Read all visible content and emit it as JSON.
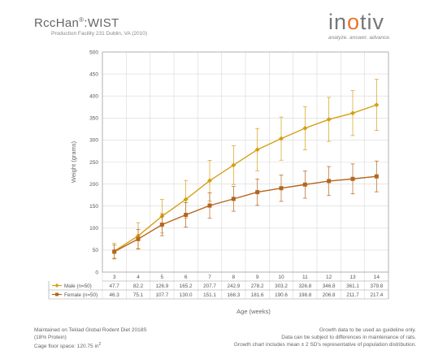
{
  "header": {
    "title_main": "RccHan",
    "title_reg": "®",
    "title_suffix": ":WIST",
    "subtitle": "Production Facility 231 Dublin, VA (2010)"
  },
  "logo": {
    "name_pre": "in",
    "name_o": "o",
    "name_post": "tiv",
    "tagline": "analyze. answer. advance."
  },
  "chart_data": {
    "type": "line",
    "ylabel": "Weight (grams)",
    "xlabel": "Age (weeks)",
    "ylim": [
      0,
      500
    ],
    "yticks": [
      0,
      50,
      100,
      150,
      200,
      250,
      300,
      350,
      400,
      450,
      500
    ],
    "grid": true,
    "categories": [
      "3",
      "4",
      "5",
      "6",
      "7",
      "8",
      "9",
      "10",
      "11",
      "12",
      "13",
      "14"
    ],
    "series": [
      {
        "name": "Male (n=50)",
        "color": "#d4a017",
        "marker": "diamond",
        "values": [
          47.7,
          82.2,
          126.9,
          165.2,
          207.7,
          242.9,
          278.2,
          303.2,
          326.8,
          346.8,
          361.1,
          379.8
        ],
        "values_text": [
          "47.7",
          "82.2",
          "126.9",
          "165.2",
          "207.7",
          "242.9",
          "278.2",
          "303.2",
          "326.8",
          "346.8",
          "361.1",
          "379.8"
        ],
        "err": [
          18,
          30,
          38,
          43,
          46,
          44,
          48,
          49,
          49,
          50,
          51,
          58
        ]
      },
      {
        "name": "Female (n=50)",
        "color": "#b5651d",
        "marker": "square",
        "values": [
          46.3,
          75.1,
          107.7,
          130.0,
          151.1,
          166.3,
          181.6,
          190.6,
          198.8,
          206.8,
          211.7,
          217.4
        ],
        "values_text": [
          "46.3",
          "75.1",
          "107.7",
          "130.0",
          "151.1",
          "166.3",
          "181.6",
          "190.6",
          "198.8",
          "206.8",
          "211.7",
          "217.4"
        ],
        "err": [
          15,
          22,
          25,
          28,
          29,
          28,
          30,
          30,
          31,
          33,
          34,
          35
        ]
      }
    ]
  },
  "footer": {
    "left_1": "Maintained on Teklad Global Rodent Diet 2018S",
    "left_2": "(18% Protein)",
    "left_3": "Cage floor space: 120.75 in",
    "left_3_sup": "2",
    "right_1": "Growth data to be used as guideline only.",
    "right_2": "Data can be subject to differences in maintenance of rats.",
    "right_3": "Growth chart includes mean ± 2 SD's representative of population distribution."
  }
}
